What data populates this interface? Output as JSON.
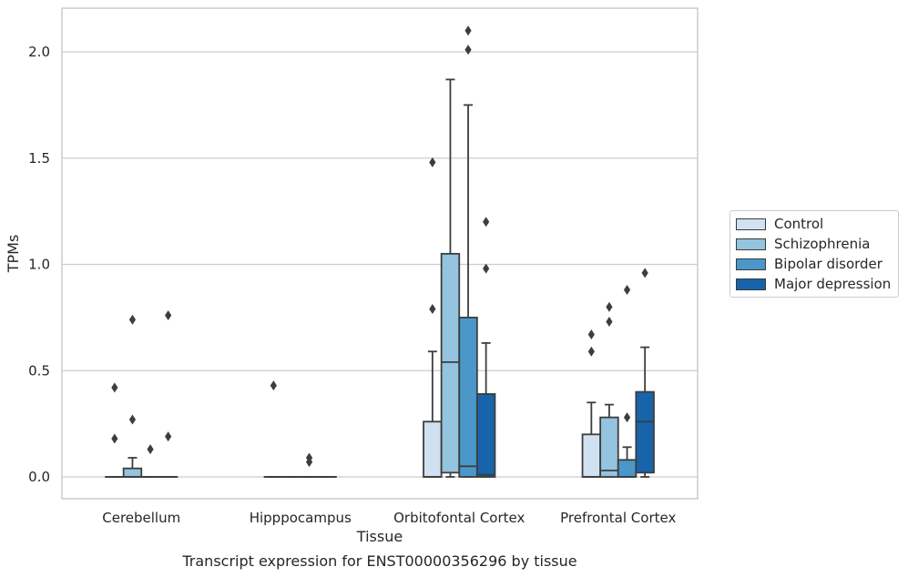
{
  "chart_data": {
    "type": "box",
    "title": "Transcript expression for ENST00000356296 by tissue",
    "xlabel": "Tissue",
    "ylabel": "TPMs",
    "ylim": [
      -0.1,
      2.22
    ],
    "yticks": [
      "0.0",
      "0.5",
      "1.0",
      "1.5",
      "2.0"
    ],
    "ytick_values": [
      0.0,
      0.5,
      1.0,
      1.5,
      2.0
    ],
    "grid": "horizontal",
    "legend_position": "right",
    "categories": [
      "Cerebellum",
      "Hipppocampus",
      "Orbitofontal Cortex",
      "Prefrontal Cortex"
    ],
    "series": [
      {
        "name": "Control",
        "color": "#d0e1f2",
        "boxes": [
          {
            "q1": 0.0,
            "median": 0.0,
            "q3": 0.0,
            "whislo": 0.0,
            "whishi": 0.0,
            "fliers": [
              0.42,
              0.18
            ]
          },
          {
            "q1": 0.0,
            "median": 0.0,
            "q3": 0.0,
            "whislo": 0.0,
            "whishi": 0.0,
            "fliers": [
              0.43
            ]
          },
          {
            "q1": 0.0,
            "median": 0.0,
            "q3": 0.26,
            "whislo": 0.0,
            "whishi": 0.59,
            "fliers": [
              1.48,
              0.79
            ]
          },
          {
            "q1": 0.0,
            "median": 0.0,
            "q3": 0.2,
            "whislo": 0.0,
            "whishi": 0.35,
            "fliers": [
              0.67,
              0.59
            ]
          }
        ]
      },
      {
        "name": "Schizophrenia",
        "color": "#94c4df",
        "boxes": [
          {
            "q1": 0.0,
            "median": 0.0,
            "q3": 0.04,
            "whislo": 0.0,
            "whishi": 0.09,
            "fliers": [
              0.74,
              0.27
            ]
          },
          {
            "q1": 0.0,
            "median": 0.0,
            "q3": 0.0,
            "whislo": 0.0,
            "whishi": 0.0,
            "fliers": []
          },
          {
            "q1": 0.02,
            "median": 0.54,
            "q3": 1.05,
            "whislo": 0.0,
            "whishi": 1.87,
            "fliers": []
          },
          {
            "q1": 0.0,
            "median": 0.03,
            "q3": 0.28,
            "whislo": 0.0,
            "whishi": 0.34,
            "fliers": [
              0.8,
              0.73
            ]
          }
        ]
      },
      {
        "name": "Bipolar disorder",
        "color": "#4a98c9",
        "boxes": [
          {
            "q1": 0.0,
            "median": 0.0,
            "q3": 0.0,
            "whislo": 0.0,
            "whishi": 0.0,
            "fliers": [
              0.13
            ]
          },
          {
            "q1": 0.0,
            "median": 0.0,
            "q3": 0.0,
            "whislo": 0.0,
            "whishi": 0.0,
            "fliers": [
              0.09,
              0.07
            ]
          },
          {
            "q1": 0.0,
            "median": 0.05,
            "q3": 0.75,
            "whislo": 0.0,
            "whishi": 1.75,
            "fliers": [
              2.1,
              2.01
            ]
          },
          {
            "q1": 0.0,
            "median": 0.0,
            "q3": 0.08,
            "whislo": 0.0,
            "whishi": 0.14,
            "fliers": [
              0.88,
              0.28
            ]
          }
        ]
      },
      {
        "name": "Major depression",
        "color": "#1764ab",
        "boxes": [
          {
            "q1": 0.0,
            "median": 0.0,
            "q3": 0.0,
            "whislo": 0.0,
            "whishi": 0.0,
            "fliers": [
              0.76,
              0.19
            ]
          },
          {
            "q1": 0.0,
            "median": 0.0,
            "q3": 0.0,
            "whislo": 0.0,
            "whishi": 0.0,
            "fliers": []
          },
          {
            "q1": 0.0,
            "median": 0.01,
            "q3": 0.39,
            "whislo": 0.0,
            "whishi": 0.63,
            "fliers": [
              1.2,
              0.98
            ]
          },
          {
            "q1": 0.02,
            "median": 0.26,
            "q3": 0.4,
            "whislo": 0.0,
            "whishi": 0.61,
            "fliers": [
              0.96
            ]
          }
        ]
      }
    ]
  }
}
